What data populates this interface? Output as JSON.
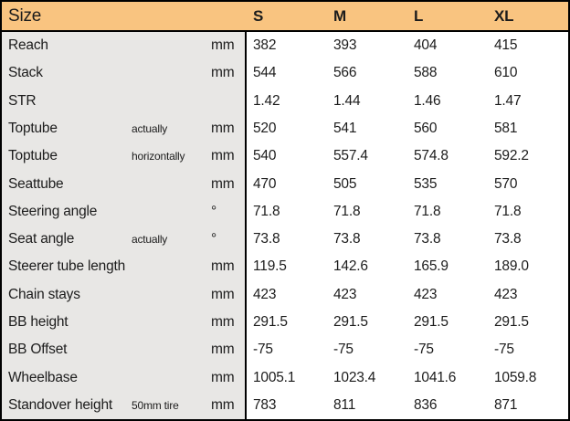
{
  "colors": {
    "header_bg": "#F9C480",
    "label_column_bg": "#E8E7E5",
    "border": "#000000",
    "text": "#1C1C1C"
  },
  "chart_data": {
    "type": "table",
    "title": "Size",
    "size_columns": [
      "S",
      "M",
      "L",
      "XL"
    ],
    "rows": [
      {
        "label": "Reach",
        "sub": "",
        "unit": "mm",
        "values": [
          "382",
          "393",
          "404",
          "415"
        ]
      },
      {
        "label": "Stack",
        "sub": "",
        "unit": "mm",
        "values": [
          "544",
          "566",
          "588",
          "610"
        ]
      },
      {
        "label": "STR",
        "sub": "",
        "unit": "",
        "values": [
          "1.42",
          "1.44",
          "1.46",
          "1.47"
        ]
      },
      {
        "label": "Toptube",
        "sub": "actually",
        "unit": "mm",
        "values": [
          "520",
          "541",
          "560",
          "581"
        ]
      },
      {
        "label": "Toptube",
        "sub": "horizontally",
        "unit": "mm",
        "values": [
          "540",
          "557.4",
          "574.8",
          "592.2"
        ]
      },
      {
        "label": "Seattube",
        "sub": "",
        "unit": "mm",
        "values": [
          "470",
          "505",
          "535",
          "570"
        ]
      },
      {
        "label": "Steering angle",
        "sub": "",
        "unit": "°",
        "values": [
          "71.8",
          "71.8",
          "71.8",
          "71.8"
        ]
      },
      {
        "label": "Seat angle",
        "sub": "actually",
        "unit": "°",
        "values": [
          "73.8",
          "73.8",
          "73.8",
          "73.8"
        ]
      },
      {
        "label": "Steerer tube length",
        "sub": "",
        "unit": "mm",
        "values": [
          "119.5",
          "142.6",
          "165.9",
          "189.0"
        ]
      },
      {
        "label": "Chain stays",
        "sub": "",
        "unit": "mm",
        "values": [
          "423",
          "423",
          "423",
          "423"
        ]
      },
      {
        "label": "BB height",
        "sub": "",
        "unit": "mm",
        "values": [
          "291.5",
          "291.5",
          "291.5",
          "291.5"
        ]
      },
      {
        "label": "BB Offset",
        "sub": "",
        "unit": "mm",
        "values": [
          "-75",
          "-75",
          "-75",
          "-75"
        ]
      },
      {
        "label": "Wheelbase",
        "sub": "",
        "unit": "mm",
        "values": [
          "1005.1",
          "1023.4",
          "1041.6",
          "1059.8"
        ]
      },
      {
        "label": "Standover height",
        "sub": "50mm tire",
        "unit": "mm",
        "values": [
          "783",
          "811",
          "836",
          "871"
        ]
      }
    ]
  }
}
